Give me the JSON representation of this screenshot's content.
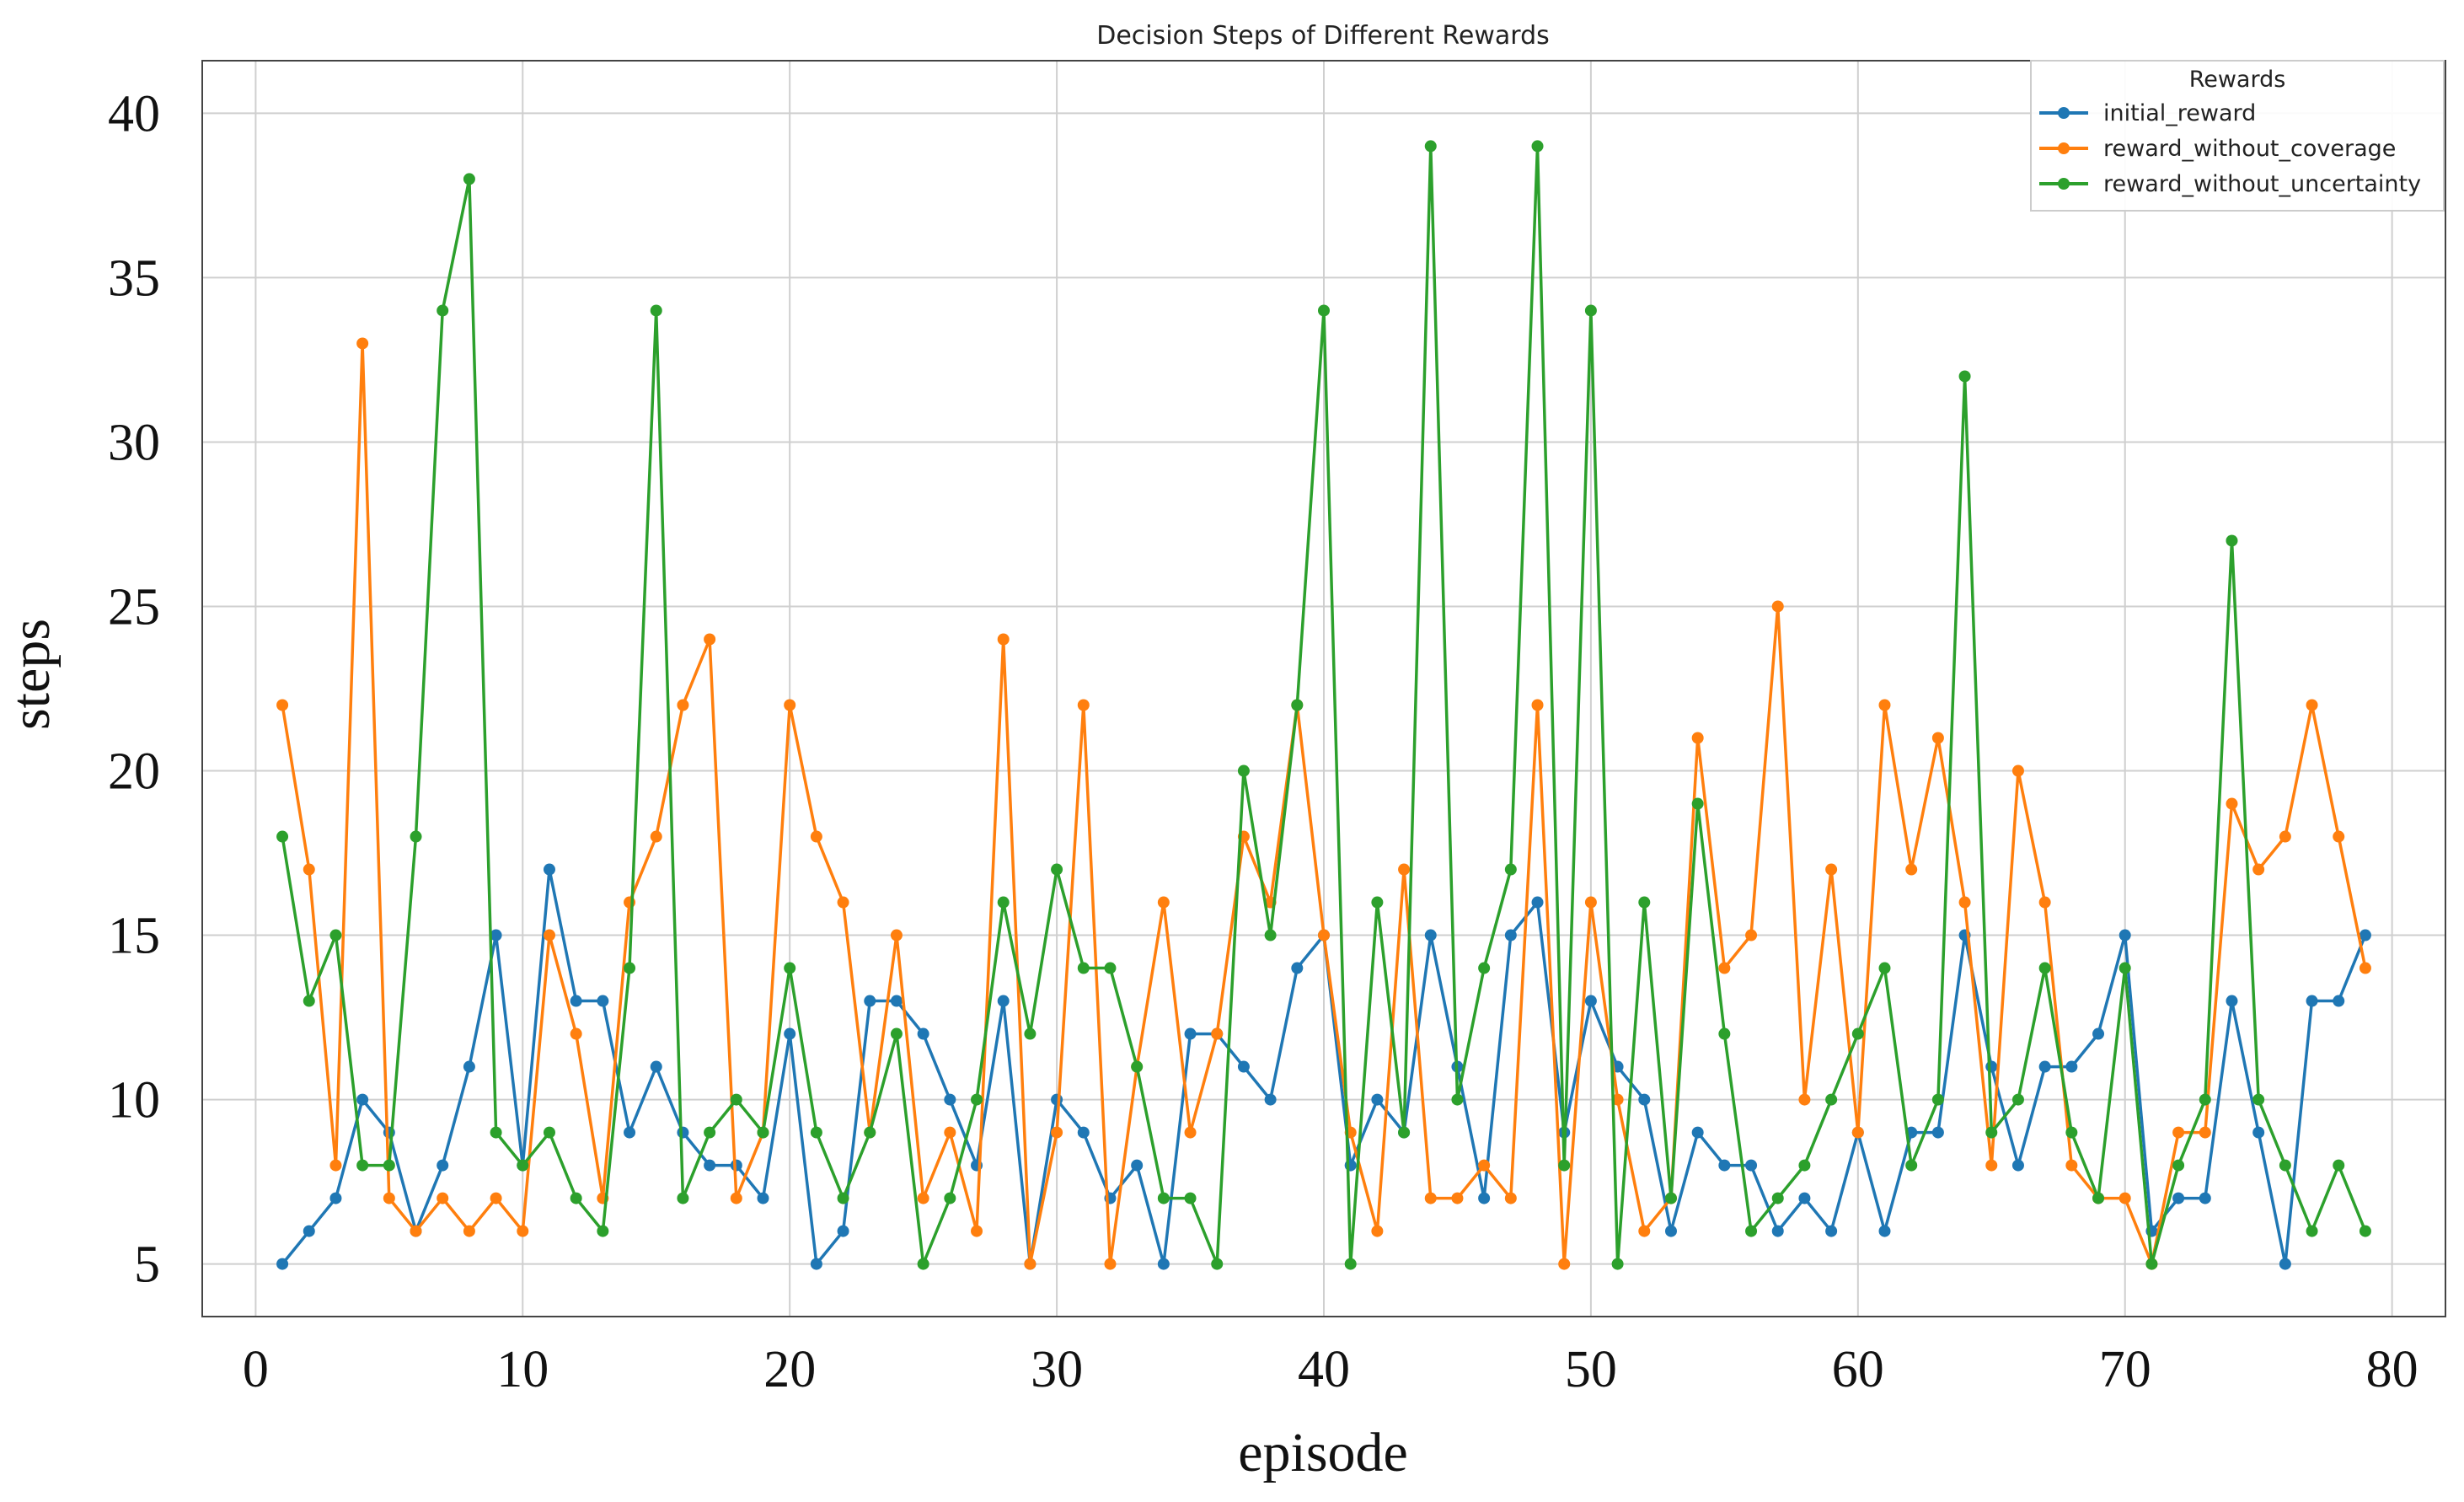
{
  "chart_data": {
    "type": "line",
    "title": "Decision Steps of Different Rewards",
    "xlabel": "episode",
    "ylabel": "steps",
    "xlim": [
      -2,
      82
    ],
    "ylim": [
      3.4,
      41.6
    ],
    "xticks": [
      0,
      10,
      20,
      30,
      40,
      50,
      60,
      70,
      80
    ],
    "yticks": [
      5,
      10,
      15,
      20,
      25,
      30,
      35,
      40
    ],
    "grid": true,
    "legend": {
      "title": "Rewards",
      "position": "top-right"
    },
    "x": [
      1,
      2,
      3,
      4,
      5,
      6,
      7,
      8,
      9,
      10,
      11,
      12,
      13,
      14,
      15,
      16,
      17,
      18,
      19,
      20,
      21,
      22,
      23,
      24,
      25,
      26,
      27,
      28,
      29,
      30,
      31,
      32,
      33,
      34,
      35,
      36,
      37,
      38,
      39,
      40,
      41,
      42,
      43,
      44,
      45,
      46,
      47,
      48,
      49,
      50,
      51,
      52,
      53,
      54,
      55,
      56,
      57,
      58,
      59,
      60,
      61,
      62,
      63,
      64,
      65,
      66,
      67,
      68,
      69,
      70,
      71,
      72,
      73,
      74,
      75,
      76,
      77,
      78,
      79
    ],
    "series": [
      {
        "name": "initial_reward",
        "color": "#1f77b4",
        "values": [
          5,
          6,
          7,
          10,
          9,
          6,
          8,
          11,
          15,
          8,
          17,
          13,
          13,
          9,
          11,
          9,
          8,
          8,
          7,
          12,
          5,
          6,
          13,
          13,
          12,
          10,
          8,
          13,
          5,
          10,
          9,
          7,
          8,
          5,
          12,
          12,
          11,
          10,
          14,
          15,
          8,
          10,
          9,
          15,
          11,
          7,
          15,
          16,
          9,
          13,
          11,
          10,
          6,
          9,
          8,
          8,
          6,
          7,
          6,
          9,
          6,
          9,
          9,
          15,
          11,
          8,
          11,
          11,
          12,
          15,
          6,
          7,
          7,
          13,
          9,
          5,
          13,
          13,
          15
        ]
      },
      {
        "name": "reward_without_coverage",
        "color": "#ff7f0e",
        "values": [
          22,
          17,
          8,
          33,
          7,
          6,
          7,
          6,
          7,
          6,
          15,
          12,
          7,
          16,
          18,
          22,
          24,
          7,
          9,
          22,
          18,
          16,
          9,
          15,
          7,
          9,
          6,
          24,
          5,
          9,
          22,
          5,
          11,
          16,
          9,
          12,
          18,
          16,
          22,
          15,
          9,
          6,
          17,
          7,
          7,
          8,
          7,
          22,
          5,
          16,
          10,
          6,
          7,
          21,
          14,
          15,
          25,
          10,
          17,
          9,
          22,
          17,
          21,
          16,
          8,
          20,
          16,
          8,
          7,
          7,
          5,
          9,
          9,
          19,
          17,
          18,
          22,
          18,
          14
        ]
      },
      {
        "name": "reward_without_uncertainty",
        "color": "#2ca02c",
        "values": [
          18,
          13,
          15,
          8,
          8,
          18,
          34,
          38,
          9,
          8,
          9,
          7,
          6,
          14,
          34,
          7,
          9,
          10,
          9,
          14,
          9,
          7,
          9,
          12,
          5,
          7,
          10,
          16,
          12,
          17,
          14,
          14,
          11,
          7,
          7,
          5,
          20,
          15,
          22,
          34,
          5,
          16,
          9,
          39,
          10,
          14,
          17,
          39,
          8,
          34,
          5,
          16,
          7,
          19,
          12,
          6,
          7,
          8,
          10,
          12,
          14,
          8,
          10,
          32,
          9,
          10,
          14,
          9,
          7,
          14,
          5,
          8,
          10,
          27,
          10,
          8,
          6,
          8,
          6
        ]
      }
    ]
  }
}
